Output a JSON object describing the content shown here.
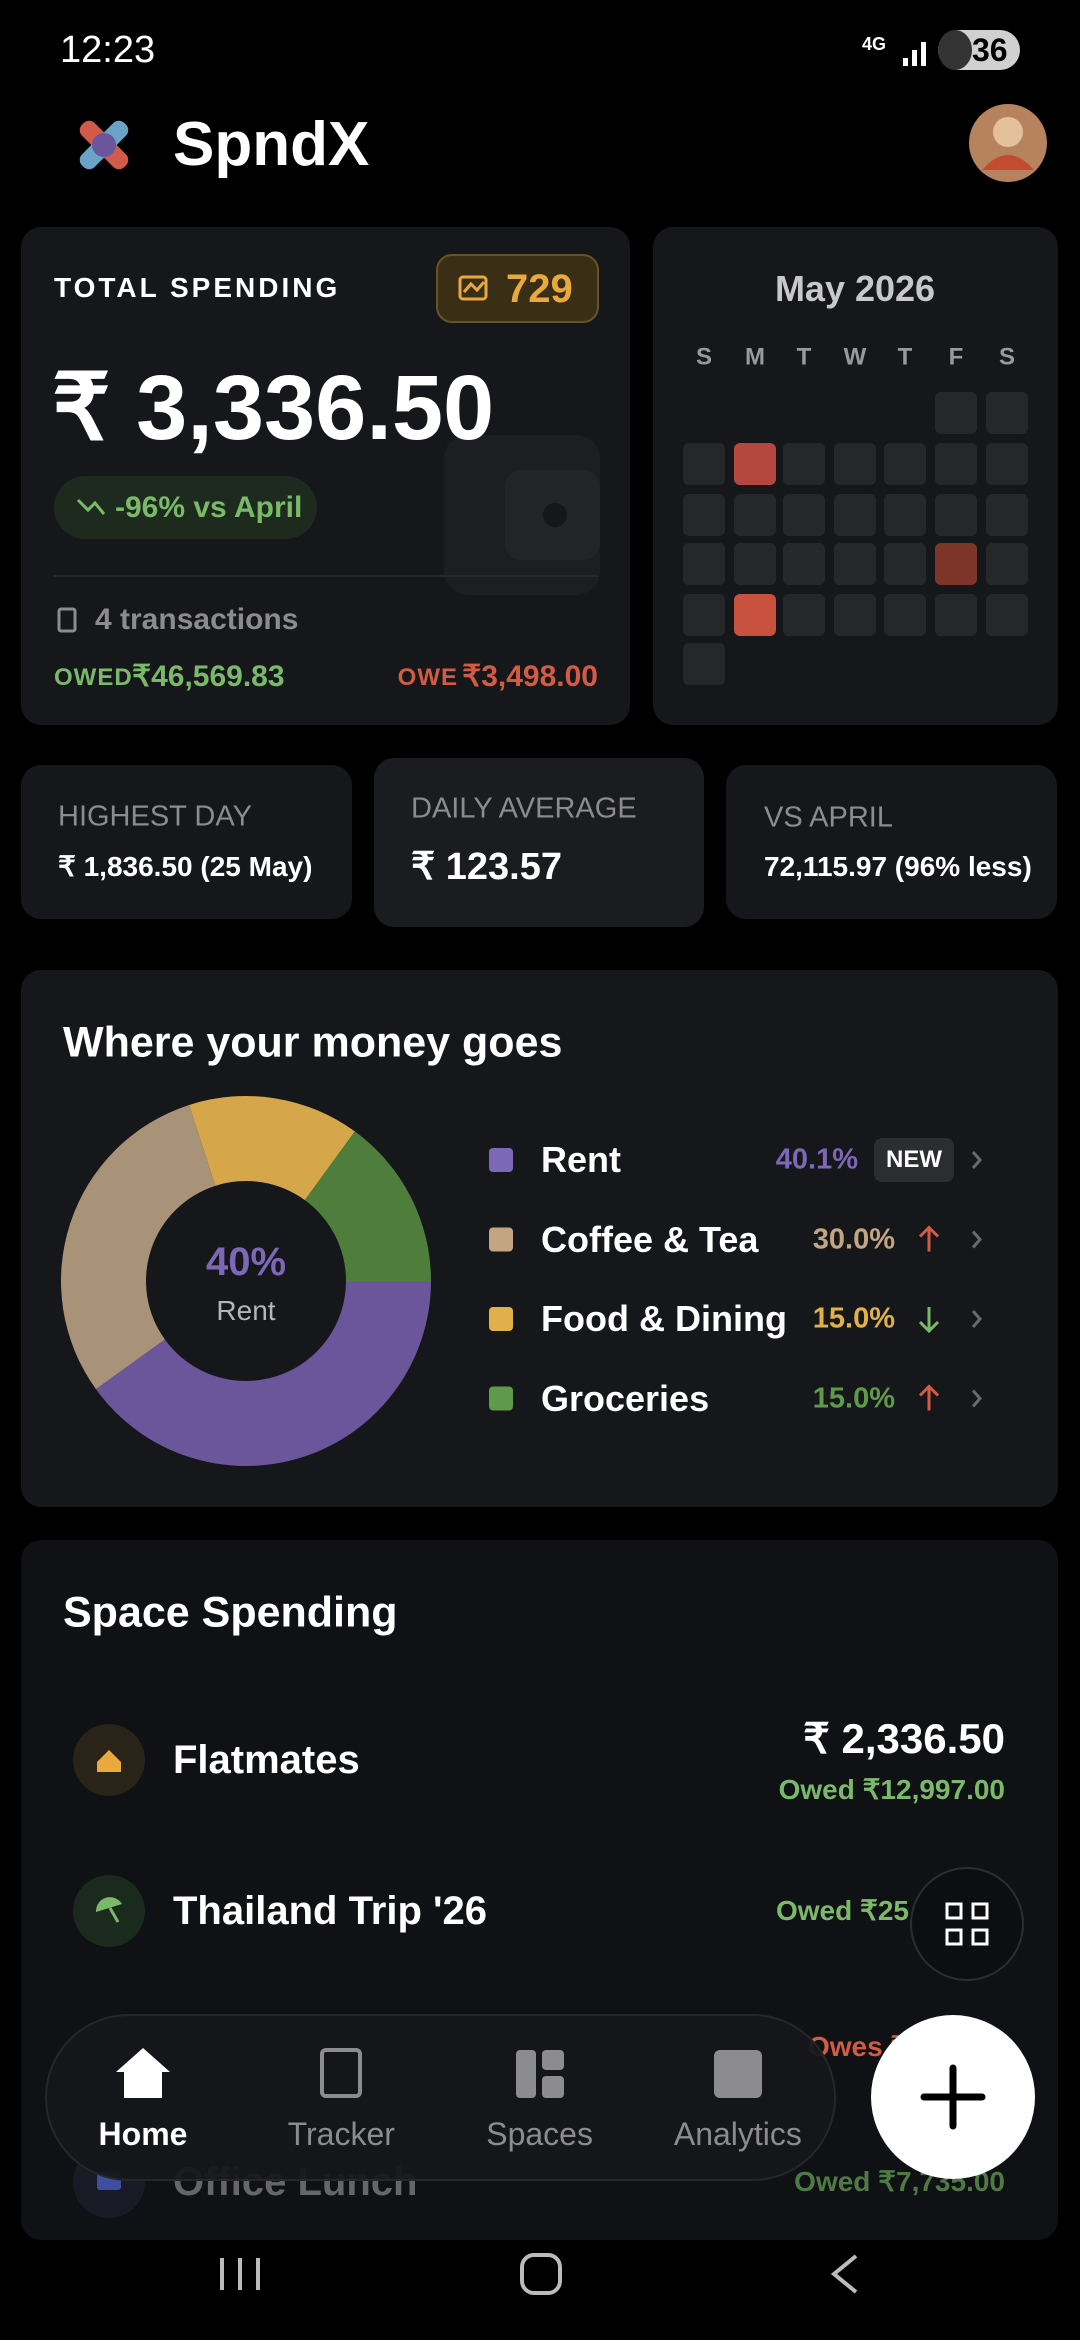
{
  "status_bar": {
    "time": "12:23",
    "network": "4G",
    "battery": "36"
  },
  "header": {
    "app_name": "SpndX"
  },
  "total_spending": {
    "label": "TOTAL SPENDING",
    "points": "729",
    "amount": "₹ 3,336.50",
    "change": "-96% vs April",
    "transactions": "4 transactions",
    "owed_label": "OWED",
    "owed_amount": "₹46,569.83",
    "owe_label": "OWE",
    "owe_amount": "₹3,498.00"
  },
  "calendar": {
    "title": "May 2026",
    "weekdays": [
      "S",
      "M",
      "T",
      "W",
      "T",
      "F",
      "S"
    ]
  },
  "stats": [
    {
      "label": "HIGHEST DAY",
      "value": "₹ 1,836.50 (25 May)"
    },
    {
      "label": "DAILY AVERAGE",
      "value": "₹ 123.57"
    },
    {
      "label": "VS APRIL",
      "value": "72,115.97 (96% less)"
    }
  ],
  "breakdown": {
    "title": "Where your money goes",
    "center_value": "40%",
    "center_label": "Rent",
    "categories": [
      {
        "name": "Rent",
        "value": 40.1,
        "label": "40.1%",
        "color": "#6b559b",
        "text_color": "#7d68b8",
        "badge": "NEW"
      },
      {
        "name": "Coffee & Tea",
        "value": 30.0,
        "label": "30.0%",
        "color": "#a89278",
        "text_color": "#c4a583",
        "trend": "up"
      },
      {
        "name": "Food & Dining",
        "value": 15.0,
        "label": "15.0%",
        "color": "#d6a64a",
        "text_color": "#e0b04a",
        "trend": "down"
      },
      {
        "name": "Groceries",
        "value": 15.0,
        "label": "15.0%",
        "color": "#4e7d3c",
        "text_color": "#5e9a4a",
        "trend": "up"
      }
    ]
  },
  "spaces": {
    "title": "Space Spending",
    "items": [
      {
        "name": "Flatmates",
        "amount": "₹ 2,336.50",
        "balance": "Owed ₹12,997.00"
      },
      {
        "name": "Thailand Trip '26",
        "balance": "Owed ₹25,"
      },
      {
        "balance": "Owes ₹"
      },
      {
        "name": "Office Lunch",
        "balance": "Owed ₹7,735.00"
      }
    ]
  },
  "nav": [
    "Home",
    "Tracker",
    "Spaces",
    "Analytics"
  ]
}
